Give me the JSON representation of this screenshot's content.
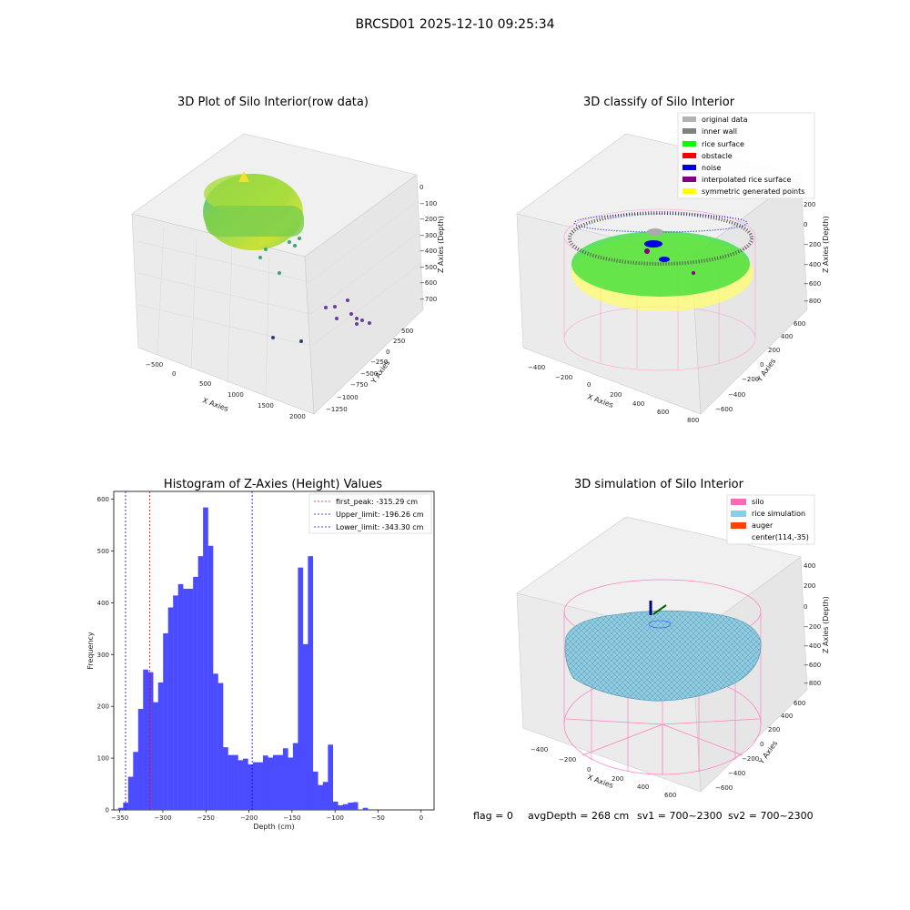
{
  "figure": {
    "suptitle": "BRCSD01 2025-12-10 09:25:34",
    "status": {
      "flag": "flag = 0",
      "avg_depth": "avgDepth = 268 cm",
      "sv1": "sv1 = 700~2300",
      "sv2": "sv2 = 700~2300"
    }
  },
  "panels": {
    "raw": {
      "title": "3D Plot of Silo Interior(row data)",
      "xlabel": "X Axies",
      "ylabel": "Y Axies",
      "zlabel": "Z Axies (Depth)",
      "xticks": [
        "−500",
        "0",
        "500",
        "1000",
        "1500",
        "2000"
      ],
      "yticks": [
        "−1250",
        "−1000",
        "−750",
        "−500",
        "−250",
        "0",
        "250",
        "500"
      ],
      "zticks": [
        "0",
        "−100",
        "−200",
        "−300",
        "−400",
        "−500",
        "−600",
        "−700"
      ]
    },
    "classify": {
      "title": "3D classify of Silo Interior",
      "xlabel": "X Axies",
      "ylabel": "Y Axies",
      "zlabel": "Z Axies (Depth)",
      "xticks": [
        "−400",
        "−200",
        "0",
        "200",
        "400",
        "600",
        "800"
      ],
      "yticks": [
        "−600",
        "−400",
        "−200",
        "0",
        "200",
        "400",
        "600"
      ],
      "zticks": [
        "200",
        "0",
        "−200",
        "−400",
        "−600",
        "−800"
      ],
      "legend": [
        {
          "label": "original data",
          "color": "#b3b3b3"
        },
        {
          "label": "inner wall",
          "color": "#808080"
        },
        {
          "label": "rice surface",
          "color": "#00ff00"
        },
        {
          "label": "obstacle",
          "color": "#ff0000"
        },
        {
          "label": "noise",
          "color": "#0000dd"
        },
        {
          "label": "interpolated rice surface",
          "color": "#800080"
        },
        {
          "label": "symmetric generated points",
          "color": "#ffff00"
        }
      ]
    },
    "simulation": {
      "title": "3D simulation of Silo Interior",
      "xlabel": "X Axies",
      "ylabel": "Y Axies",
      "zlabel": "Z Axies (Depth)",
      "xticks": [
        "−400",
        "−200",
        "0",
        "200",
        "400",
        "600"
      ],
      "yticks": [
        "−600",
        "−400",
        "−200",
        "0",
        "200",
        "400",
        "600"
      ],
      "zticks": [
        "400",
        "200",
        "0",
        "−200",
        "−400",
        "−600",
        "−800"
      ],
      "legend": [
        {
          "label": "silo",
          "color": "#ff69b4"
        },
        {
          "label": "rice simulation",
          "color": "#87ceeb"
        },
        {
          "label": "auger",
          "color": "#ff4500"
        },
        {
          "label": "center(114,-35)",
          "color": ""
        }
      ]
    }
  },
  "chart_data": {
    "type": "bar",
    "title": "Histogram of Z-Axies (Height) Values",
    "xlabel": "Depth (cm)",
    "ylabel": "Frequency",
    "xlim": [
      -357,
      15
    ],
    "ylim": [
      0,
      615
    ],
    "bar_color": "#4b4bff",
    "bin_start": -351.9,
    "bin_width": 5.8,
    "values": [
      4,
      14,
      64,
      112,
      195,
      271,
      266,
      208,
      246,
      341,
      391,
      414,
      436,
      427,
      427,
      450,
      490,
      584,
      510,
      263,
      245,
      121,
      106,
      106,
      96,
      99,
      88,
      92,
      92,
      105,
      101,
      106,
      106,
      119,
      101,
      129,
      468,
      320,
      490,
      74,
      48,
      54,
      126,
      16,
      9,
      11,
      14,
      15,
      0,
      4
    ],
    "xticks": [
      -350,
      -300,
      -250,
      -200,
      -150,
      -100,
      -50,
      0
    ],
    "yticks": [
      0,
      100,
      200,
      300,
      400,
      500,
      600
    ],
    "lines": [
      {
        "name": "first_peak: -315.29 cm",
        "x": -315.29,
        "color": "#ff0000"
      },
      {
        "name": "Upper_limit: -196.26 cm",
        "x": -196.26,
        "color": "#0000ff"
      },
      {
        "name": "Lower_limit: -343.30 cm",
        "x": -343.3,
        "color": "#0000ff"
      }
    ],
    "legend": "upper right"
  }
}
